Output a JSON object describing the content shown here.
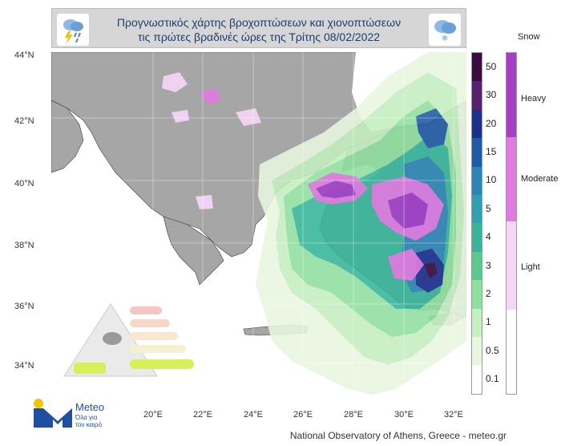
{
  "title": {
    "line1": "Προγνωστικός χάρτης βροχοπτώσεων  και χιονοπτώσεων",
    "line2": "τις πρώτες βραδινές ώρες της Τρίτης 08/02/2022"
  },
  "map": {
    "latitude_labels": [
      "44°N",
      "42°N",
      "40°N",
      "38°N",
      "36°N",
      "34°N"
    ],
    "longitude_labels": [
      "20°E",
      "22°E",
      "24°E",
      "26°E",
      "28°E",
      "30°E",
      "32°E"
    ],
    "sea_color": "#ffffff",
    "land_color": "#a6a6a6"
  },
  "rain_legend": {
    "ticks": [
      "50",
      "30",
      "20",
      "15",
      "10",
      "5",
      "4",
      "3",
      "2",
      "1",
      "0.5",
      "0.1"
    ],
    "colors": [
      "#3b0a3f",
      "#5a1f6e",
      "#1b2f8f",
      "#1f5aa6",
      "#2a86b8",
      "#2da2b6",
      "#36b59a",
      "#59c98d",
      "#8fdf9f",
      "#c4efc1",
      "#e9f7df",
      "#ffffff"
    ]
  },
  "snow_legend": {
    "title": "Snow",
    "levels": [
      "Heavy",
      "Moderate",
      "Light"
    ],
    "colors": [
      "#a63fc7",
      "#e07be0",
      "#f6d6f6"
    ]
  },
  "logo": {
    "name": "Meteo",
    "tagline_line1": "Όλα για",
    "tagline_line2": "τον καιρό"
  },
  "credit": "National Observatory of Athens, Greece - meteo.gr"
}
